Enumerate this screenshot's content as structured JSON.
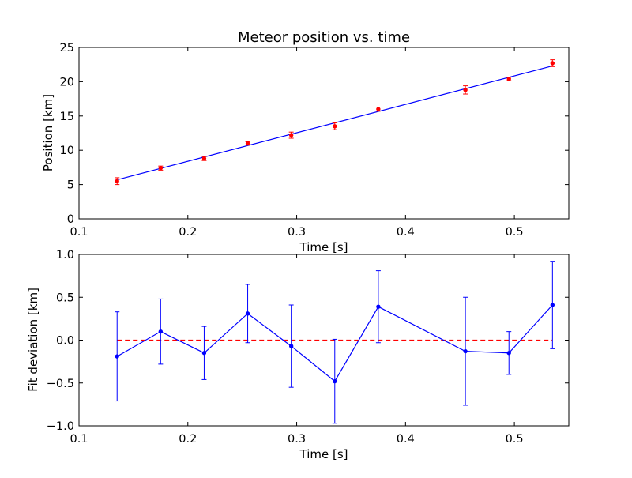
{
  "chart_data": [
    {
      "type": "scatter",
      "title": "Meteor position vs. time",
      "xlabel": "Time [s]",
      "ylabel": "Position [km]",
      "xlim": [
        0.1,
        0.55
      ],
      "ylim": [
        0,
        25
      ],
      "xticks": [
        "0.1",
        "0.2",
        "0.3",
        "0.4",
        "0.5"
      ],
      "yticks": [
        "0",
        "5",
        "10",
        "15",
        "20",
        "25"
      ],
      "grid": false,
      "colors": {
        "points": "#ff0000",
        "fit": "#0000ff"
      },
      "series": [
        {
          "kind": "points-with-errorbars",
          "x": [
            0.135,
            0.175,
            0.215,
            0.255,
            0.295,
            0.335,
            0.375,
            0.455,
            0.495,
            0.535
          ],
          "y": [
            5.5,
            7.4,
            8.8,
            11.0,
            12.2,
            13.5,
            16.0,
            18.8,
            20.4,
            22.7
          ],
          "yerr": [
            0.5,
            0.3,
            0.3,
            0.25,
            0.45,
            0.5,
            0.3,
            0.6,
            0.25,
            0.5
          ]
        },
        {
          "kind": "fit-line",
          "x": [
            0.135,
            0.535
          ],
          "y": [
            5.7,
            22.3
          ]
        }
      ]
    },
    {
      "type": "line",
      "title": "",
      "xlabel": "Time [s]",
      "ylabel": "Fit deviation [km]",
      "xlim": [
        0.1,
        0.55
      ],
      "ylim": [
        -1.0,
        1.0
      ],
      "xticks": [
        "0.1",
        "0.2",
        "0.3",
        "0.4",
        "0.5"
      ],
      "yticks": [
        "1.0",
        "0.5",
        "0.0",
        "−0.5",
        "−1.0"
      ],
      "grid": false,
      "colors": {
        "residuals": "#0000ff",
        "zero": "#ff0000"
      },
      "series": [
        {
          "kind": "line-with-errorbars",
          "x": [
            0.135,
            0.175,
            0.215,
            0.255,
            0.295,
            0.335,
            0.375,
            0.455,
            0.495,
            0.535
          ],
          "y": [
            -0.19,
            0.1,
            -0.15,
            0.31,
            -0.07,
            -0.48,
            0.39,
            -0.13,
            -0.15,
            0.41
          ],
          "yerr": [
            0.52,
            0.38,
            0.31,
            0.34,
            0.48,
            0.49,
            0.42,
            0.63,
            0.25,
            0.51
          ]
        },
        {
          "kind": "dashed-zero-line",
          "x": [
            0.135,
            0.535
          ],
          "y": [
            0,
            0
          ]
        }
      ]
    }
  ]
}
